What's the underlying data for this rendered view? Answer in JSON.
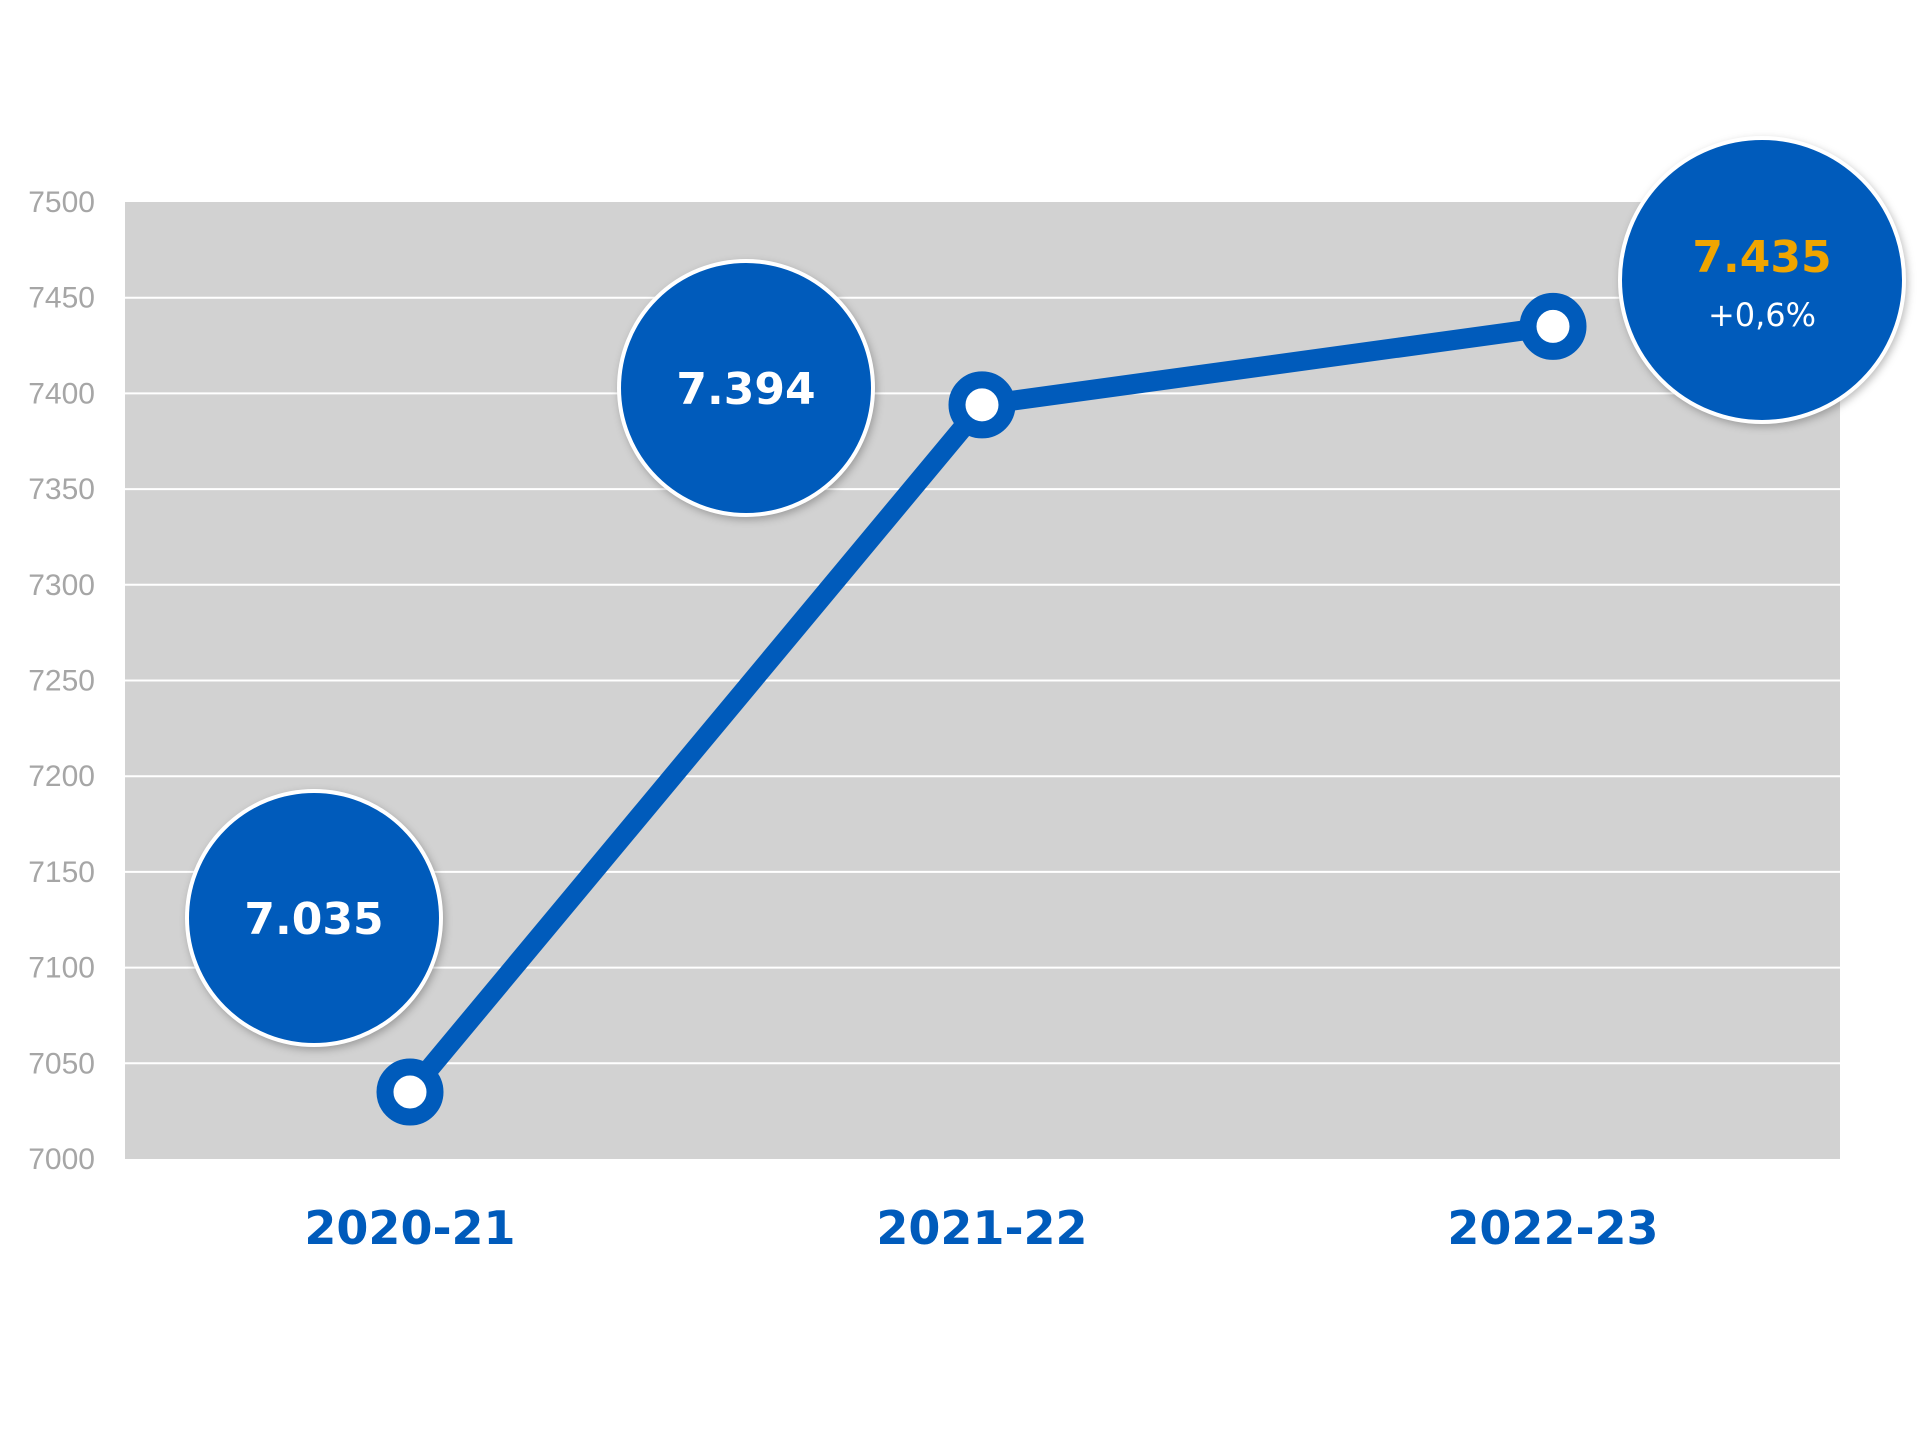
{
  "colors": {
    "plot_background": "#d2d2d2",
    "gridline": "#ffffff",
    "series": "#005bbb",
    "bubble": "#005bbb",
    "bubble_text": "#ffffff",
    "highlight_text": "#f0a500",
    "tick_text": "#a6a6a6",
    "category_text": "#005bbb"
  },
  "chart_data": {
    "type": "line",
    "title": "",
    "xlabel": "",
    "ylabel": "",
    "categories": [
      "2020-21",
      "2021-22",
      "2022-23"
    ],
    "series": [
      {
        "values": [
          7035,
          7394,
          7435
        ]
      }
    ],
    "ylim": [
      7000,
      7500
    ],
    "yticks": [
      7000,
      7050,
      7100,
      7150,
      7200,
      7250,
      7300,
      7350,
      7400,
      7450,
      7500
    ],
    "grid": true,
    "legend": "none",
    "annotations": [
      {
        "category": "2020-21",
        "label": "7.035",
        "sublabel": "",
        "highlight": false
      },
      {
        "category": "2021-22",
        "label": "7.394",
        "sublabel": "",
        "highlight": false
      },
      {
        "category": "2022-23",
        "label": "7.435",
        "sublabel": "+0,6%",
        "highlight": true
      }
    ]
  }
}
